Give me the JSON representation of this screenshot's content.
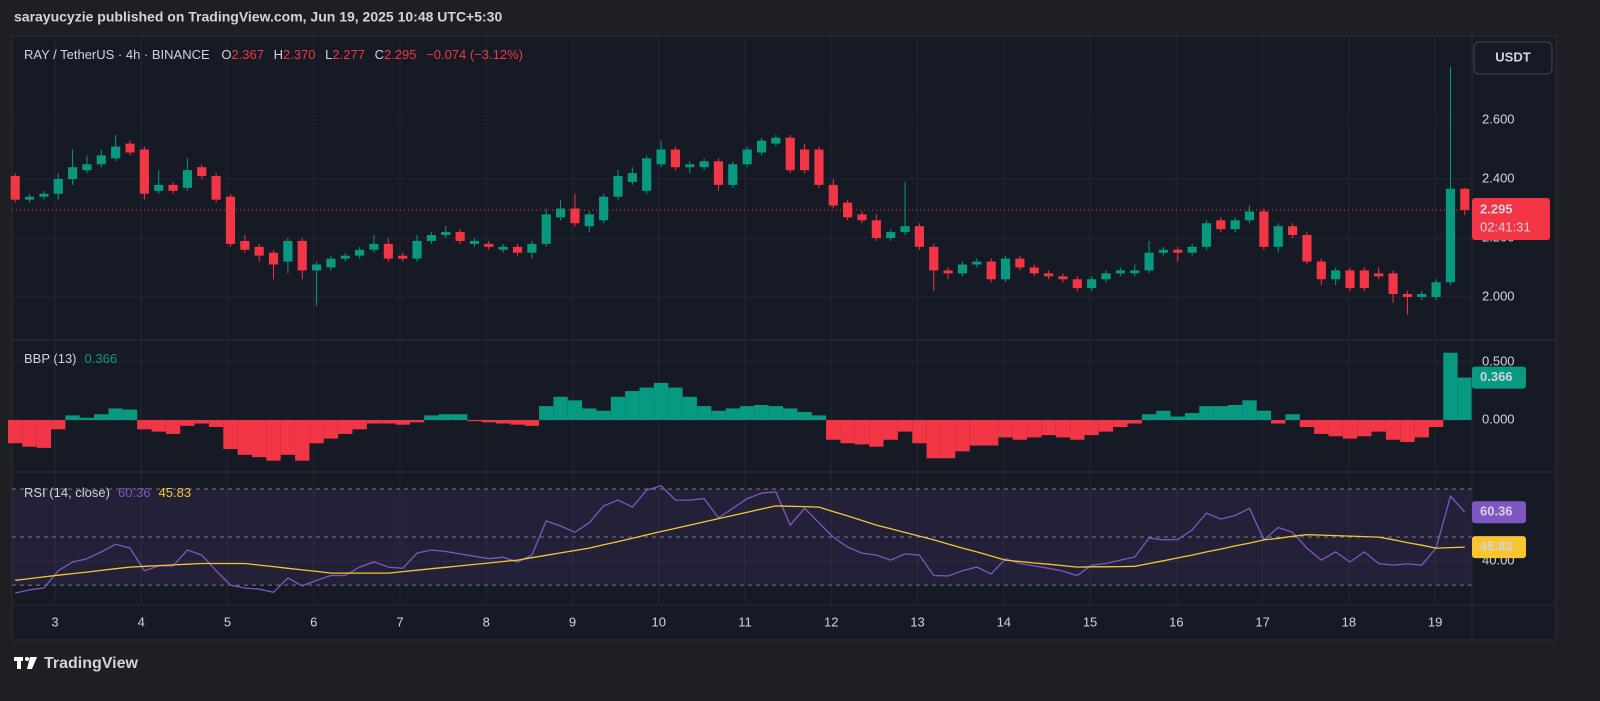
{
  "header": {
    "publisher": "sarayucyzie published on TradingView.com, Jun 19, 2025 10:48 UTC+5:30"
  },
  "footer": {
    "logo": "TradingView"
  },
  "chart_data": [
    {
      "type": "candlestick",
      "title": "RAY / TetherUS · 4h · BINANCE",
      "currency": "USDT",
      "ohlc_keys": [
        "O",
        "H",
        "L",
        "C"
      ],
      "ohlc_labels": [
        "2.367",
        "2.370",
        "2.277",
        "2.295"
      ],
      "change_label": "−0.074 (−3.12%)",
      "countdown": "02:41:31",
      "up_color": "#089981",
      "down_color": "#f23645",
      "grid": true,
      "open": [
        2.41,
        2.33,
        2.34,
        2.35,
        2.4,
        2.43,
        2.45,
        2.47,
        2.52,
        2.5,
        2.36,
        2.38,
        2.37,
        2.44,
        2.41,
        2.34,
        2.19,
        2.17,
        2.15,
        2.12,
        2.19,
        2.09,
        2.1,
        2.13,
        2.14,
        2.16,
        2.18,
        2.14,
        2.13,
        2.19,
        2.21,
        2.22,
        2.18,
        2.18,
        2.16,
        2.17,
        2.15,
        2.18,
        2.27,
        2.3,
        2.24,
        2.26,
        2.34,
        2.39,
        2.36,
        2.45,
        2.5,
        2.44,
        2.44,
        2.46,
        2.38,
        2.45,
        2.49,
        2.52,
        2.54,
        2.5,
        2.5,
        2.38,
        2.32,
        2.28,
        2.26,
        2.2,
        2.22,
        2.24,
        2.17,
        2.09,
        2.08,
        2.11,
        2.12,
        2.06,
        2.13,
        2.1,
        2.08,
        2.07,
        2.06,
        2.03,
        2.06,
        2.08,
        2.08,
        2.09,
        2.15,
        2.16,
        2.15,
        2.17,
        2.26,
        2.23,
        2.26,
        2.29,
        2.17,
        2.24,
        2.21,
        2.12,
        2.06,
        2.09,
        2.09,
        2.08,
        2.08,
        2.01,
        2.0,
        2.0,
        2.05,
        2.367
      ],
      "high": [
        2.42,
        2.35,
        2.36,
        2.42,
        2.5,
        2.48,
        2.5,
        2.55,
        2.53,
        2.51,
        2.43,
        2.39,
        2.47,
        2.45,
        2.42,
        2.35,
        2.21,
        2.18,
        2.16,
        2.2,
        2.2,
        2.12,
        2.14,
        2.15,
        2.17,
        2.21,
        2.2,
        2.15,
        2.21,
        2.22,
        2.24,
        2.23,
        2.2,
        2.19,
        2.18,
        2.18,
        2.19,
        2.3,
        2.33,
        2.35,
        2.29,
        2.35,
        2.43,
        2.44,
        2.48,
        2.53,
        2.51,
        2.46,
        2.47,
        2.47,
        2.46,
        2.51,
        2.54,
        2.55,
        2.55,
        2.52,
        2.51,
        2.4,
        2.33,
        2.29,
        2.28,
        2.23,
        2.39,
        2.25,
        2.18,
        2.1,
        2.12,
        2.13,
        2.13,
        2.14,
        2.14,
        2.11,
        2.09,
        2.08,
        2.07,
        2.07,
        2.09,
        2.1,
        2.11,
        2.19,
        2.17,
        2.17,
        2.18,
        2.26,
        2.27,
        2.27,
        2.31,
        2.3,
        2.25,
        2.25,
        2.22,
        2.13,
        2.1,
        2.1,
        2.1,
        2.1,
        2.09,
        2.02,
        2.02,
        2.06,
        2.78,
        2.37
      ],
      "low": [
        2.32,
        2.32,
        2.33,
        2.33,
        2.38,
        2.42,
        2.44,
        2.46,
        2.48,
        2.33,
        2.35,
        2.35,
        2.36,
        2.4,
        2.32,
        2.17,
        2.15,
        2.12,
        2.06,
        2.08,
        2.06,
        1.97,
        2.09,
        2.12,
        2.13,
        2.15,
        2.12,
        2.12,
        2.12,
        2.18,
        2.2,
        2.18,
        2.17,
        2.16,
        2.15,
        2.14,
        2.13,
        2.17,
        2.26,
        2.24,
        2.22,
        2.25,
        2.33,
        2.38,
        2.35,
        2.44,
        2.43,
        2.42,
        2.43,
        2.36,
        2.37,
        2.44,
        2.48,
        2.51,
        2.42,
        2.42,
        2.37,
        2.3,
        2.26,
        2.25,
        2.19,
        2.19,
        2.21,
        2.16,
        2.02,
        2.06,
        2.07,
        2.1,
        2.05,
        2.05,
        2.09,
        2.07,
        2.06,
        2.05,
        2.02,
        2.02,
        2.05,
        2.07,
        2.07,
        2.08,
        2.14,
        2.12,
        2.14,
        2.16,
        2.22,
        2.22,
        2.25,
        2.16,
        2.15,
        2.2,
        2.11,
        2.04,
        2.04,
        2.02,
        2.02,
        2.06,
        1.98,
        1.94,
        1.99,
        1.99,
        2.04,
        2.277
      ],
      "close": [
        2.33,
        2.34,
        2.35,
        2.4,
        2.44,
        2.45,
        2.48,
        2.51,
        2.49,
        2.35,
        2.38,
        2.36,
        2.43,
        2.41,
        2.33,
        2.18,
        2.16,
        2.14,
        2.11,
        2.19,
        2.09,
        2.11,
        2.13,
        2.14,
        2.16,
        2.18,
        2.13,
        2.13,
        2.19,
        2.21,
        2.22,
        2.19,
        2.19,
        2.17,
        2.17,
        2.15,
        2.18,
        2.28,
        2.3,
        2.25,
        2.28,
        2.34,
        2.41,
        2.42,
        2.47,
        2.5,
        2.44,
        2.45,
        2.46,
        2.38,
        2.45,
        2.5,
        2.53,
        2.54,
        2.43,
        2.43,
        2.38,
        2.31,
        2.27,
        2.26,
        2.2,
        2.22,
        2.24,
        2.17,
        2.09,
        2.08,
        2.11,
        2.12,
        2.06,
        2.13,
        2.1,
        2.08,
        2.07,
        2.06,
        2.03,
        2.06,
        2.08,
        2.09,
        2.09,
        2.15,
        2.16,
        2.15,
        2.17,
        2.25,
        2.23,
        2.26,
        2.29,
        2.17,
        2.24,
        2.21,
        2.12,
        2.06,
        2.09,
        2.03,
        2.03,
        2.07,
        2.01,
        2.0,
        2.01,
        2.05,
        2.367,
        2.295
      ],
      "ylim": [
        1.854,
        2.885
      ],
      "yticks": [
        {
          "value": 2.0,
          "label": "2.000"
        },
        {
          "value": 2.2,
          "label": "2.200"
        },
        {
          "value": 2.4,
          "label": "2.400"
        },
        {
          "value": 2.6,
          "label": "2.600"
        }
      ],
      "xlim": [
        -0.5,
        101.5
      ],
      "xticks": [
        {
          "value": 2.77,
          "label": "3"
        },
        {
          "value": 8.78,
          "label": "4"
        },
        {
          "value": 14.79,
          "label": "5"
        },
        {
          "value": 20.8,
          "label": "6"
        },
        {
          "value": 26.81,
          "label": "7"
        },
        {
          "value": 32.82,
          "label": "8"
        },
        {
          "value": 38.83,
          "label": "9"
        },
        {
          "value": 44.84,
          "label": "10"
        },
        {
          "value": 50.85,
          "label": "11"
        },
        {
          "value": 56.86,
          "label": "12"
        },
        {
          "value": 62.87,
          "label": "13"
        },
        {
          "value": 68.88,
          "label": "14"
        },
        {
          "value": 74.89,
          "label": "15"
        },
        {
          "value": 80.9,
          "label": "16"
        },
        {
          "value": 86.91,
          "label": "17"
        },
        {
          "value": 92.92,
          "label": "18"
        },
        {
          "value": 98.93,
          "label": "19"
        }
      ]
    },
    {
      "type": "bar",
      "title": "BBP (13)",
      "up_color": "#089981",
      "down_color": "#f23645",
      "grid": true,
      "values": [
        -0.2,
        -0.23,
        -0.24,
        -0.08,
        0.04,
        0.02,
        0.05,
        0.1,
        0.09,
        -0.08,
        -0.1,
        -0.12,
        -0.05,
        -0.03,
        -0.06,
        -0.25,
        -0.3,
        -0.32,
        -0.35,
        -0.3,
        -0.35,
        -0.2,
        -0.16,
        -0.12,
        -0.08,
        -0.03,
        -0.03,
        -0.04,
        -0.02,
        0.04,
        0.05,
        0.05,
        -0.01,
        -0.02,
        -0.03,
        -0.04,
        -0.05,
        0.12,
        0.2,
        0.17,
        0.1,
        0.08,
        0.2,
        0.25,
        0.28,
        0.32,
        0.28,
        0.2,
        0.12,
        0.08,
        0.1,
        0.12,
        0.13,
        0.12,
        0.1,
        0.07,
        0.04,
        -0.17,
        -0.2,
        -0.21,
        -0.23,
        -0.17,
        -0.1,
        -0.2,
        -0.33,
        -0.33,
        -0.27,
        -0.22,
        -0.22,
        -0.15,
        -0.17,
        -0.15,
        -0.13,
        -0.15,
        -0.17,
        -0.13,
        -0.1,
        -0.06,
        -0.03,
        0.05,
        0.08,
        0.03,
        0.06,
        0.12,
        0.12,
        0.13,
        0.17,
        0.08,
        -0.03,
        0.05,
        -0.06,
        -0.12,
        -0.14,
        -0.16,
        -0.14,
        -0.1,
        -0.17,
        -0.19,
        -0.15,
        -0.06,
        0.58,
        0.366
      ],
      "ylim": [
        -0.448,
        0.69
      ],
      "yticks": [
        {
          "value": 0,
          "label": "0.000"
        },
        {
          "value": 0.5,
          "label": "0.500"
        }
      ]
    },
    {
      "type": "line",
      "title": "RSI (14, close)",
      "grid": true,
      "levels": [
        70,
        50,
        30
      ],
      "band_color": "#7e57c2",
      "series": [
        {
          "color": "#7e57c2",
          "values": [
            26.7,
            28,
            28.8,
            36,
            39.6,
            41,
            43.8,
            47,
            45.4,
            36,
            38,
            38,
            44.6,
            42.5,
            36,
            30,
            28.8,
            28.3,
            27,
            33,
            29.6,
            32,
            34,
            34,
            37.5,
            39.6,
            37.5,
            37,
            43.3,
            44.6,
            44,
            43,
            42,
            41,
            41.6,
            39.6,
            42.5,
            56.7,
            54.6,
            52,
            56,
            63,
            65.4,
            62.5,
            69.6,
            71.3,
            65.4,
            65.4,
            66,
            58,
            62,
            66,
            68.3,
            68.8,
            55,
            62,
            56,
            50,
            45.8,
            43.3,
            42.5,
            40.4,
            43,
            42.5,
            34,
            33.8,
            36,
            37.5,
            34.6,
            41,
            39,
            38,
            37,
            35.8,
            34,
            38.3,
            39,
            40.4,
            41.7,
            49.6,
            48.8,
            49,
            53,
            60,
            57.5,
            59,
            62,
            48.8,
            54,
            52,
            45.4,
            40.4,
            43.8,
            39.6,
            43.8,
            39,
            38.3,
            38.8,
            38.3,
            45.4,
            67,
            60.36
          ]
        },
        {
          "color": "#f7c530",
          "values": [
            32,
            32.7,
            33.4,
            34.1,
            34.8,
            35.4,
            36.1,
            36.8,
            37.5,
            37.8,
            38.1,
            38.4,
            38.7,
            39,
            39,
            39,
            39,
            38.3,
            37.7,
            37,
            36.3,
            35.7,
            35,
            35,
            35,
            35,
            35,
            35.6,
            36.2,
            36.8,
            37.4,
            38,
            38.6,
            39.2,
            39.8,
            40.4,
            41.4,
            42.4,
            43.4,
            44.4,
            45.4,
            46.8,
            48.1,
            49.5,
            50.9,
            52.3,
            53.6,
            55,
            56.3,
            57.7,
            59,
            60.3,
            61.7,
            63,
            62.8,
            62.7,
            62.5,
            60.6,
            58.8,
            56.9,
            55,
            53.5,
            51.9,
            50.4,
            48.8,
            47.1,
            45.4,
            43.8,
            42.1,
            40.4,
            39.8,
            39.2,
            38.7,
            38.1,
            37.5,
            37.6,
            37.6,
            37.7,
            37.8,
            39,
            40.1,
            41.3,
            42.5,
            43.8,
            45,
            46.3,
            47.5,
            48.8,
            49.5,
            50.3,
            51,
            50.8,
            50.6,
            50.4,
            50.2,
            50,
            48.9,
            47.7,
            46.6,
            45.4,
            45.6,
            45.83
          ]
        }
      ],
      "ylim": [
        21.7,
        77.1
      ],
      "yticks": [
        {
          "value": 40,
          "label": "40.00"
        }
      ]
    }
  ]
}
